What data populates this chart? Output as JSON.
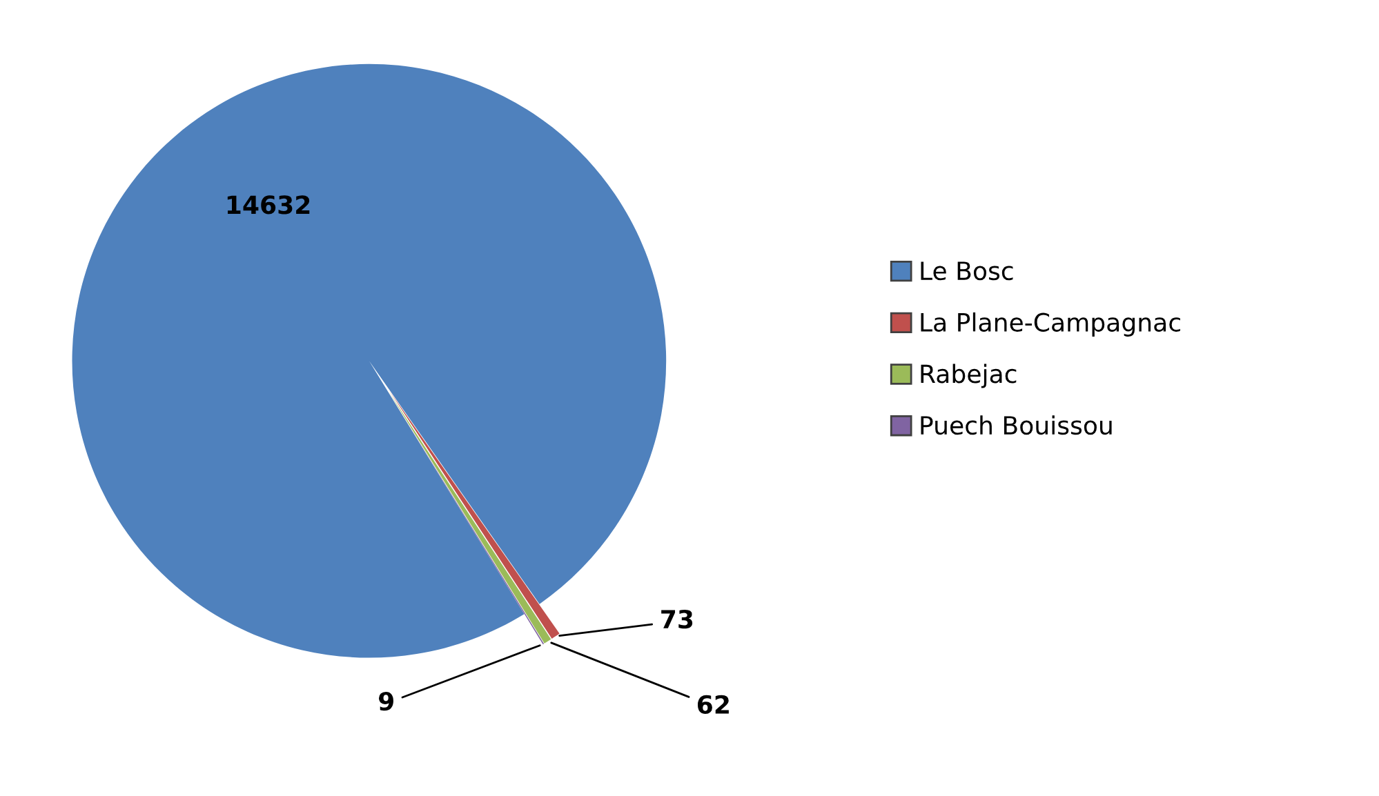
{
  "chart_data": {
    "type": "pie",
    "categories": [
      "Le Bosc",
      "La Plane-Campagnac",
      "Rabejac",
      "Puech Bouissou"
    ],
    "values": [
      14632,
      73,
      62,
      9
    ],
    "colors": [
      "#4f81bd",
      "#c0504d",
      "#9bbb59",
      "#8064a2"
    ],
    "data_labels": true,
    "legend": "right"
  }
}
